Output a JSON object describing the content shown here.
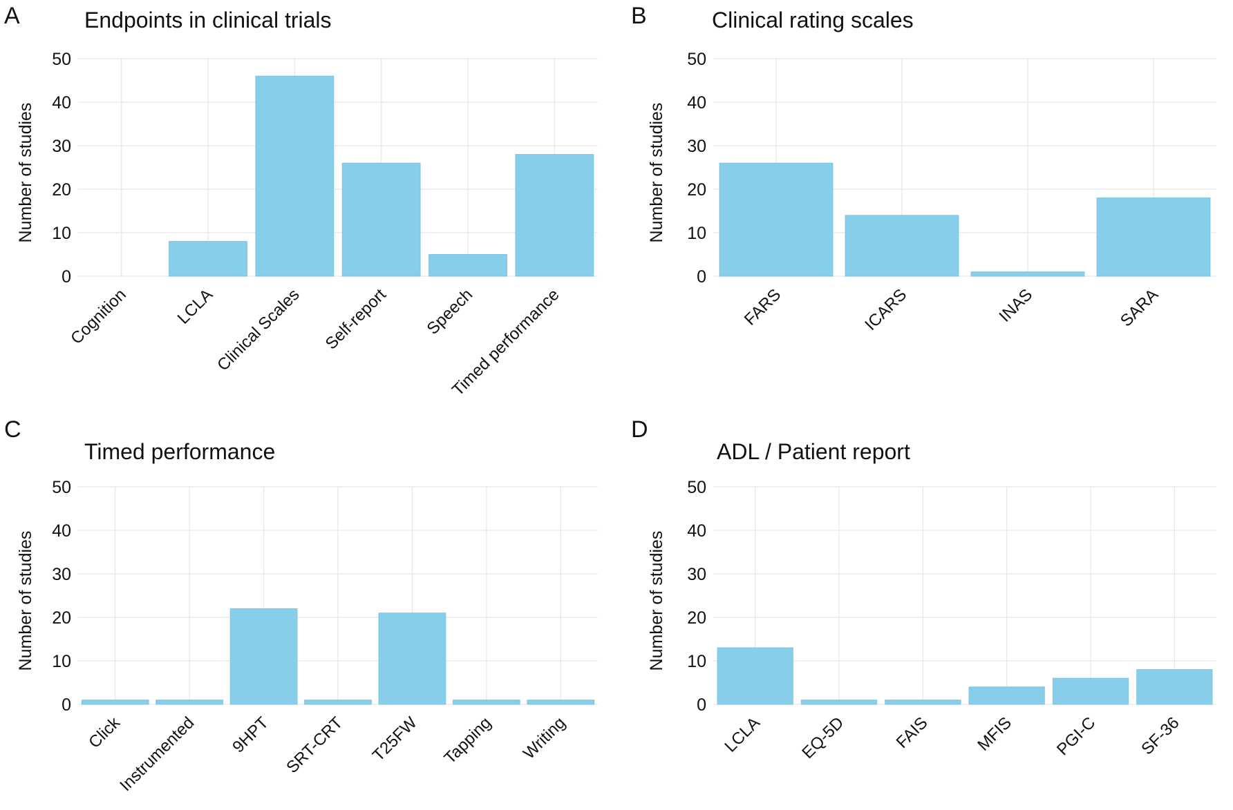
{
  "colors": {
    "bar": "#87ceeb",
    "bar_stroke": "#7fc4e0",
    "grid": "#e6e6e6",
    "text": "#111111"
  },
  "chart_data": [
    {
      "panel": "A",
      "type": "bar",
      "title": "Endpoints in clinical trials",
      "xlabel": "",
      "ylabel": "Number of studies",
      "ylim": [
        0,
        50
      ],
      "yticks": [
        "0",
        "10",
        "20",
        "30",
        "40",
        "50"
      ],
      "grid": true,
      "categories": [
        "Cognition",
        "LCLA",
        "Clinical Scales",
        "Self-report",
        "Speech",
        "Timed performance"
      ],
      "values": [
        0,
        8,
        46,
        26,
        5,
        28
      ]
    },
    {
      "panel": "B",
      "type": "bar",
      "title": "Clinical rating scales",
      "xlabel": "",
      "ylabel": "Number of studies",
      "ylim": [
        0,
        50
      ],
      "yticks": [
        "0",
        "10",
        "20",
        "30",
        "40",
        "50"
      ],
      "grid": true,
      "categories": [
        "FARS",
        "ICARS",
        "INAS",
        "SARA"
      ],
      "values": [
        26,
        14,
        1,
        18
      ]
    },
    {
      "panel": "C",
      "type": "bar",
      "title": "Timed performance",
      "xlabel": "",
      "ylabel": "Number of studies",
      "ylim": [
        0,
        50
      ],
      "yticks": [
        "0",
        "10",
        "20",
        "30",
        "40",
        "50"
      ],
      "grid": true,
      "categories": [
        "Click",
        "Instrumented",
        "9HPT",
        "SRT-CRT",
        "T25FW",
        "Tapping",
        "Writing"
      ],
      "values": [
        1,
        1,
        22,
        1,
        21,
        1,
        1
      ]
    },
    {
      "panel": "D",
      "type": "bar",
      "title": "ADL / Patient report",
      "xlabel": "",
      "ylabel": "Number of studies",
      "ylim": [
        0,
        50
      ],
      "yticks": [
        "0",
        "10",
        "20",
        "30",
        "40",
        "50"
      ],
      "grid": true,
      "categories": [
        "LCLA",
        "EQ-5D",
        "FAIS",
        "MFIS",
        "PGI-C",
        "SF-36"
      ],
      "values": [
        13,
        1,
        1,
        4,
        6,
        8
      ]
    }
  ]
}
